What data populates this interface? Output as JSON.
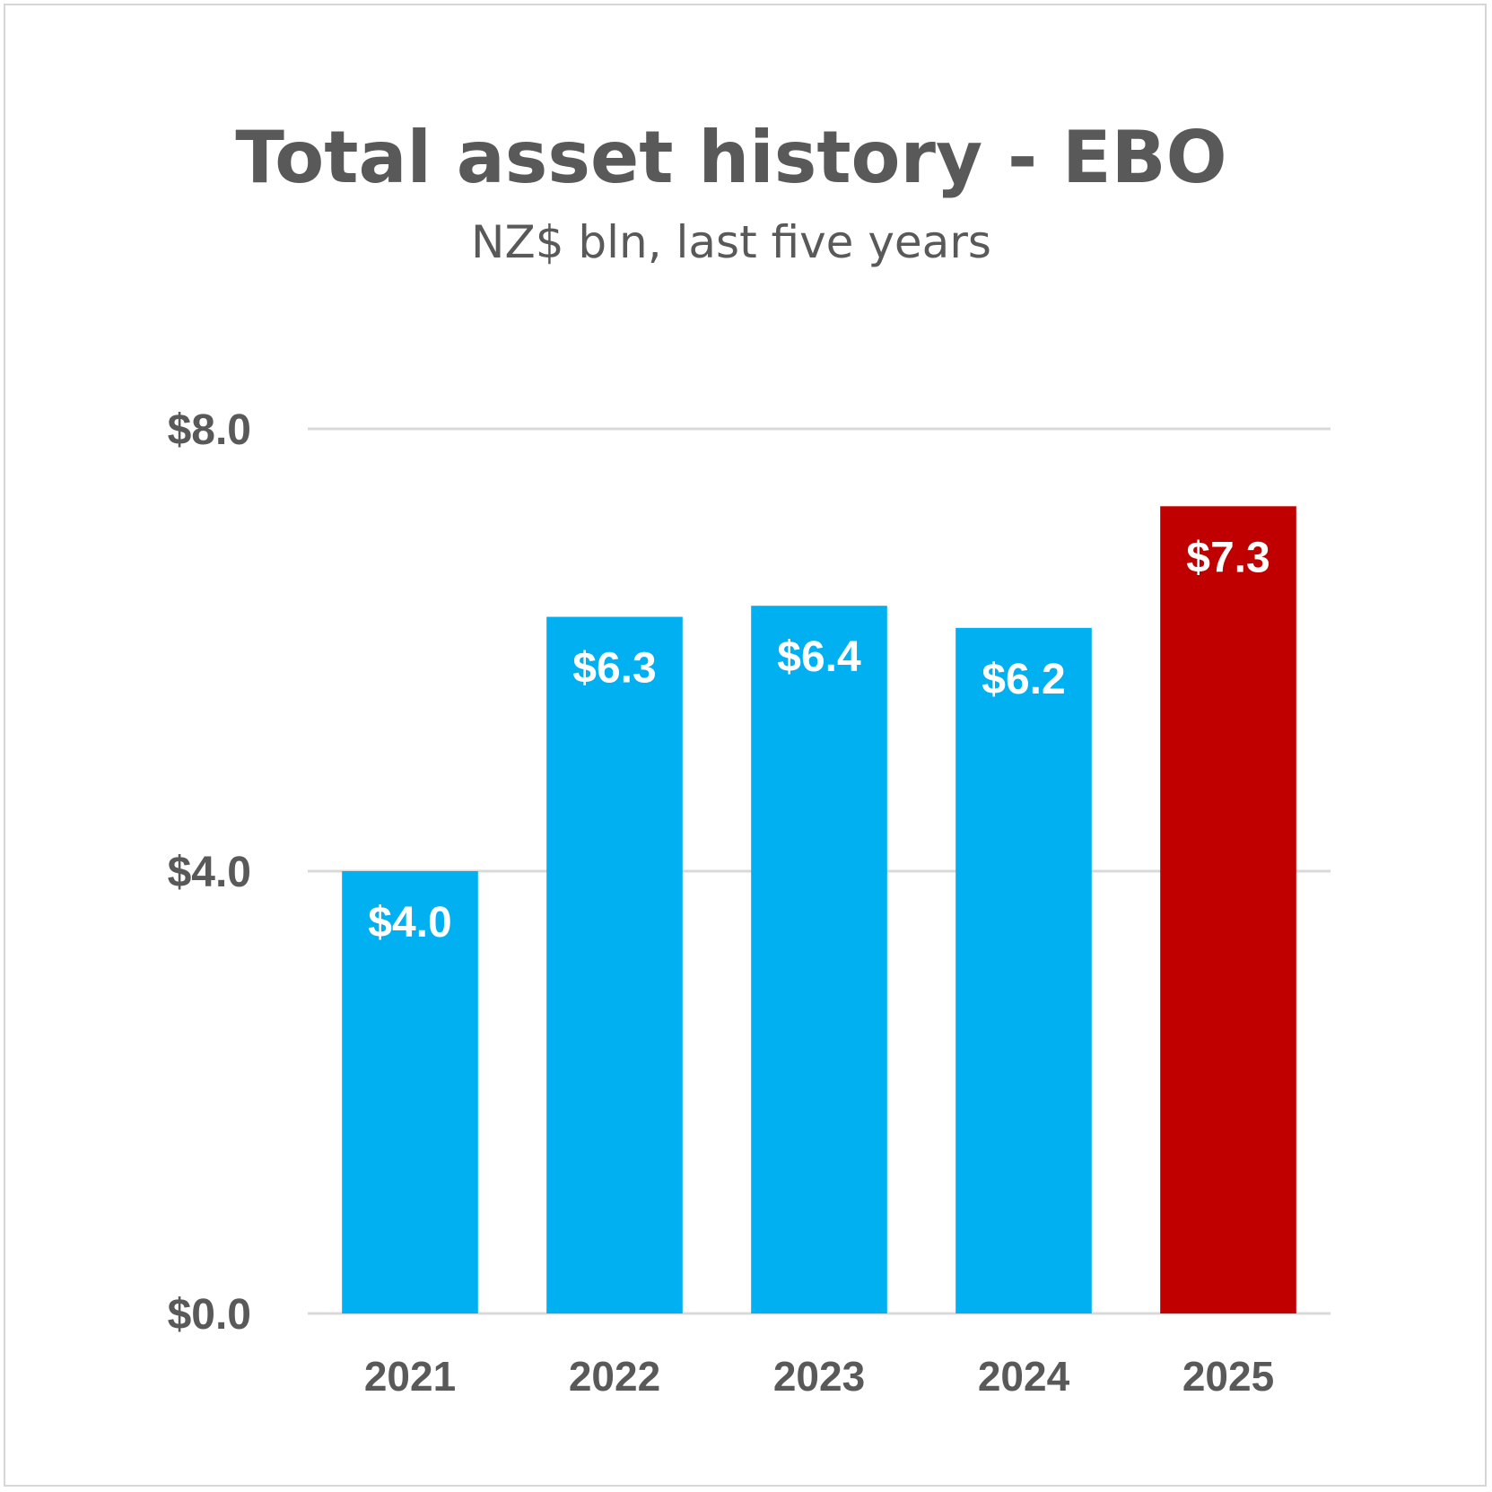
{
  "chart_data": {
    "type": "bar",
    "title": "Total asset history - EBO",
    "subtitle": "NZ$ bln, last five years",
    "categories": [
      "2021",
      "2022",
      "2023",
      "2024",
      "2025"
    ],
    "values": [
      4.0,
      6.3,
      6.4,
      6.2,
      7.3
    ],
    "value_labels": [
      "$4.0",
      "$6.3",
      "$6.4",
      "$6.2",
      "$7.3"
    ],
    "ylim": [
      0,
      8
    ],
    "yticks": [
      0,
      4,
      8
    ],
    "ytick_labels": [
      "$0.0",
      "$4.0",
      "$8.0"
    ],
    "xlabel": "",
    "ylabel": "",
    "grid": true,
    "legend": "none",
    "colors": {
      "default": "#00B0F0",
      "highlight": "#C00000",
      "highlight_index": 4,
      "text": "#595959",
      "gridline": "#d9d9d9"
    }
  }
}
